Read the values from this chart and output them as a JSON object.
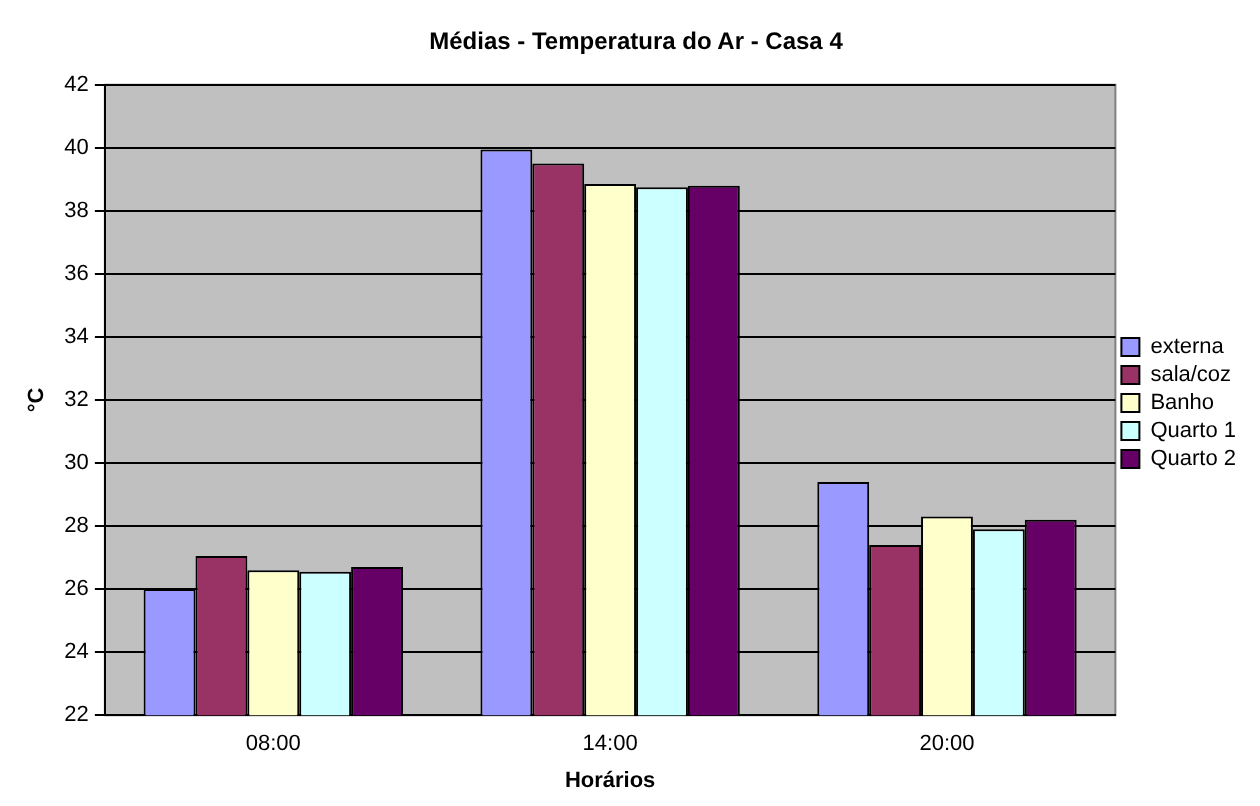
{
  "chart_data": {
    "type": "bar",
    "title": "Médias - Temperatura do Ar - Casa 4",
    "xlabel": "Horários",
    "ylabel": "°C",
    "categories": [
      "08:00",
      "14:00",
      "20:00"
    ],
    "series": [
      {
        "name": "externa",
        "color": "#9999ff",
        "values": [
          26.0,
          39.95,
          29.4
        ]
      },
      {
        "name": "sala/coz",
        "color": "#993366",
        "values": [
          27.05,
          39.5,
          27.4
        ]
      },
      {
        "name": "Banho",
        "color": "#ffffcc",
        "values": [
          26.6,
          38.85,
          28.3
        ]
      },
      {
        "name": "Quarto 1",
        "color": "#ccffff",
        "values": [
          26.55,
          38.75,
          27.9
        ]
      },
      {
        "name": "Quarto 2",
        "color": "#660066",
        "values": [
          26.7,
          38.8,
          28.2
        ]
      }
    ],
    "ylim": [
      22,
      42
    ],
    "yticks": [
      22,
      24,
      26,
      28,
      30,
      32,
      34,
      36,
      38,
      40,
      42
    ],
    "grid": "y",
    "legend": "right"
  }
}
